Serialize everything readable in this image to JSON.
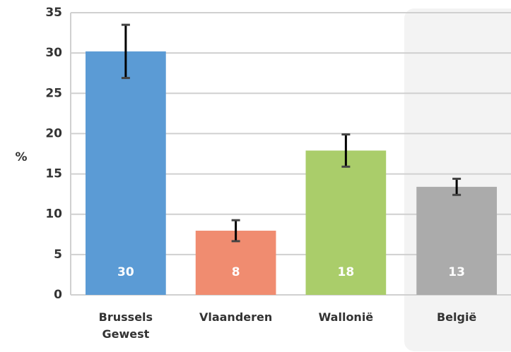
{
  "chart_data": {
    "type": "bar",
    "ylabel": "%",
    "categories": [
      "Brussels Gewest",
      "Vlaanderen",
      "Wallonië",
      "België"
    ],
    "values": [
      30.2,
      7.96,
      17.9,
      13.4
    ],
    "value_labels": [
      "30",
      "8",
      "18",
      "13"
    ],
    "errors": [
      3.3,
      1.3,
      2.0,
      1.0
    ],
    "colors": [
      "#5b9bd5",
      "#f08c70",
      "#aacd6a",
      "#ababab"
    ],
    "ylim": [
      0,
      35
    ],
    "yticks": [
      0,
      5,
      10,
      15,
      20,
      25,
      30,
      35
    ],
    "grid": true
  }
}
